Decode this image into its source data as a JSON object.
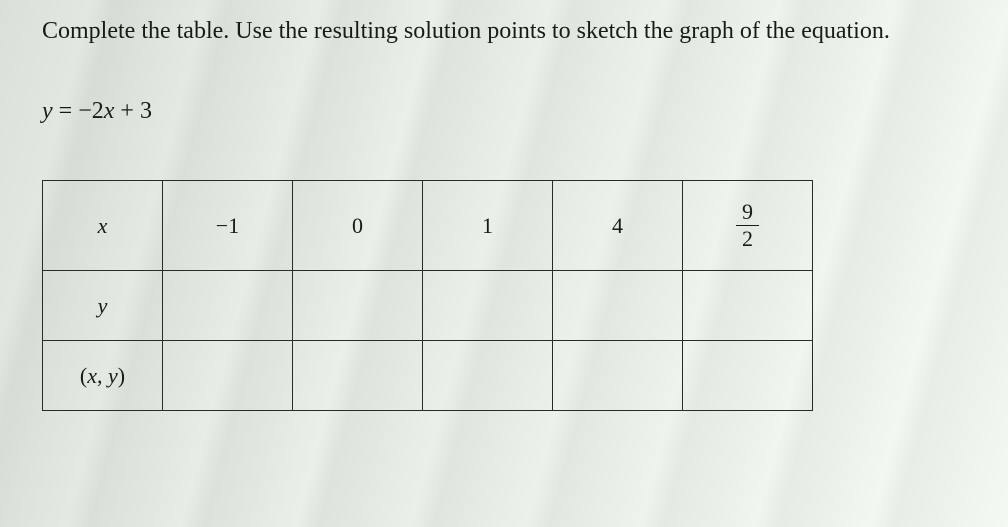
{
  "instruction": "Complete the table. Use the resulting solution points to sketch the graph of the equation.",
  "equation": {
    "lhs_var": "y",
    "eq": "=",
    "coef_sign": "−",
    "coef": "2",
    "rhs_var": "x",
    "plus": "+",
    "constant": "3"
  },
  "table": {
    "row_headers": {
      "x": "x",
      "y": "y",
      "xy_open": "(",
      "xy_x": "x",
      "xy_comma": ", ",
      "xy_y": "y",
      "xy_close": ")"
    },
    "x_values": {
      "c0": "−1",
      "c1": "0",
      "c2": "1",
      "c3": "4",
      "c4_num": "9",
      "c4_den": "2"
    },
    "y_values": {
      "c0": "",
      "c1": "",
      "c2": "",
      "c3": "",
      "c4": ""
    },
    "xy_values": {
      "c0": "",
      "c1": "",
      "c2": "",
      "c3": "",
      "c4": ""
    }
  },
  "colors": {
    "text": "#1a1a1a",
    "border": "#2a2a2a"
  }
}
